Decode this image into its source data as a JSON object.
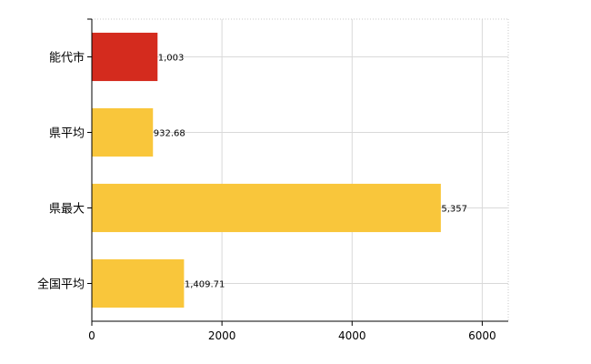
{
  "chart_data": {
    "type": "bar",
    "orientation": "horizontal",
    "categories": [
      "能代市",
      "県平均",
      "県最大",
      "全国平均"
    ],
    "values": [
      1003,
      932.68,
      5357,
      1409.71
    ],
    "value_labels": [
      "1,003",
      "932.68",
      "5,357",
      "1,409.71"
    ],
    "bar_colors": [
      "#d42b1e",
      "#f9c63b",
      "#f9c63b",
      "#f9c63b"
    ],
    "xlim": [
      0,
      6400
    ],
    "xticks": [
      0,
      2000,
      4000,
      6000
    ],
    "xtick_labels": [
      "0",
      "2000",
      "4000",
      "6000"
    ],
    "grid": true,
    "title": "",
    "xlabel": "",
    "ylabel": ""
  }
}
